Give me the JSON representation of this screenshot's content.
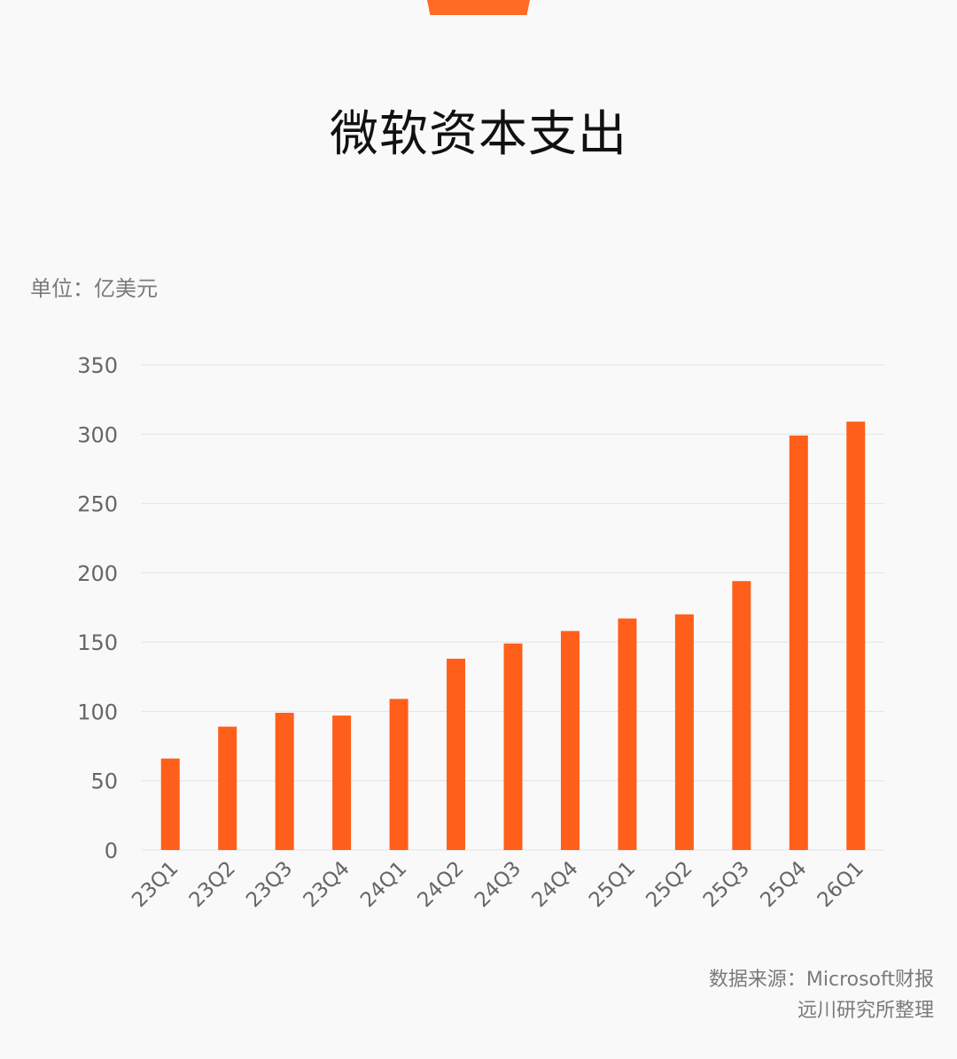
{
  "header": {
    "title": "微软资本支出"
  },
  "unit_label": "单位：亿美元",
  "footer": {
    "source_line": "数据来源：Microsoft财报",
    "compiled_by": "远川研究所整理"
  },
  "colors": {
    "bar": "#ff5f1a",
    "accent_tab": "#ff6a24",
    "grid": "#e3e3e3",
    "tick_text": "#666666"
  },
  "chart_data": {
    "type": "bar",
    "title": "微软资本支出",
    "ylabel": "单位：亿美元",
    "xlabel": "",
    "categories": [
      "23Q1",
      "23Q2",
      "23Q3",
      "23Q4",
      "24Q1",
      "24Q2",
      "24Q3",
      "24Q4",
      "25Q1",
      "25Q2",
      "25Q3",
      "25Q4",
      "26Q1"
    ],
    "values": [
      66,
      89,
      99,
      97,
      109,
      138,
      149,
      158,
      167,
      170,
      194,
      299,
      309
    ],
    "ylim": [
      0,
      350
    ],
    "yticks": [
      0,
      50,
      100,
      150,
      200,
      250,
      300,
      350
    ],
    "grid": true,
    "legend": "none"
  }
}
